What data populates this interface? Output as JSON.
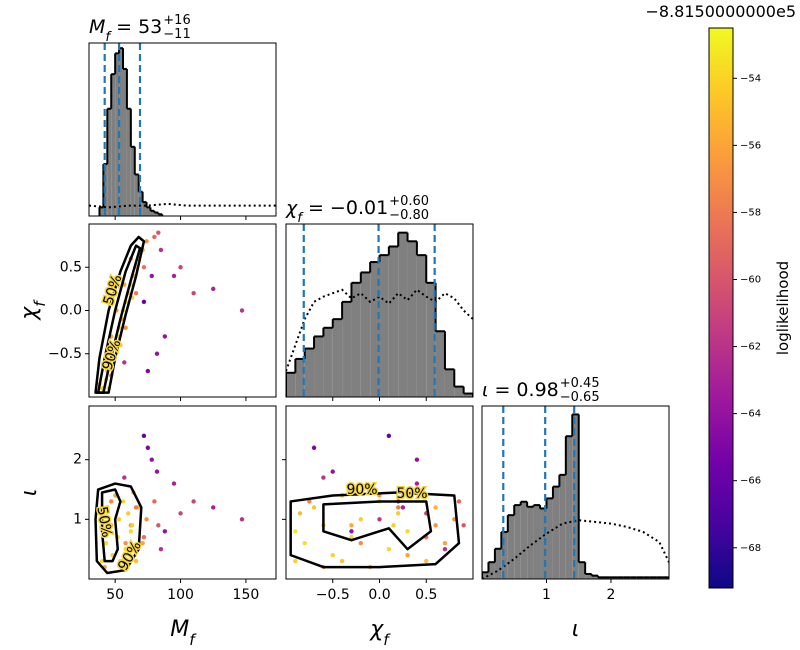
{
  "chart_data": {
    "type": "corner",
    "parameters": [
      {
        "label": {
          "main": "M",
          "sub": "f"
        },
        "title": {
          "main": "M",
          "sub": "f",
          "eq": " = 53",
          "upper": "+16",
          "lower": "−11"
        },
        "lim": [
          30,
          173
        ],
        "ticks": [
          50,
          100,
          150
        ],
        "quantiles": [
          42,
          53,
          69
        ],
        "hist": {
          "bins": [
            38,
            41,
            44,
            47,
            50,
            53,
            56,
            59,
            62,
            65,
            68,
            71,
            74,
            77,
            80,
            83,
            86
          ],
          "counts": [
            5,
            30,
            62,
            82,
            94,
            97,
            85,
            62,
            40,
            24,
            14,
            8,
            5,
            3,
            2,
            1
          ],
          "ylim": [
            0,
            100
          ]
        },
        "prior": {
          "x": [
            30,
            45,
            60,
            75,
            90,
            105,
            120,
            135,
            150,
            173
          ],
          "values": [
            6,
            5,
            6,
            6,
            7,
            6,
            6,
            6,
            6,
            6
          ]
        }
      },
      {
        "label": {
          "main": "χ",
          "sub": "f"
        },
        "title": {
          "main": "χ",
          "sub": "f",
          "eq": " = −0.01",
          "upper": "+0.60",
          "lower": "−0.80"
        },
        "lim": [
          -1.0,
          1.0
        ],
        "ticks": [
          {
            "value": -0.5,
            "label": "−0.5"
          },
          {
            "value": 0,
            "label": "0.0"
          },
          0.5
        ],
        "quantiles": [
          -0.81,
          -0.01,
          0.59
        ],
        "hist": {
          "bins": [
            -1.0,
            -0.9,
            -0.8,
            -0.7,
            -0.6,
            -0.5,
            -0.4,
            -0.3,
            -0.2,
            -0.1,
            0,
            0.1,
            0.2,
            0.3,
            0.4,
            0.5,
            0.6,
            0.7,
            0.8,
            0.9,
            1.0
          ],
          "counts": [
            14,
            22,
            28,
            35,
            40,
            45,
            55,
            66,
            72,
            78,
            82,
            87,
            95,
            90,
            82,
            66,
            38,
            16,
            6,
            2
          ],
          "ylim": [
            0,
            100
          ]
        },
        "prior": {
          "x": [
            -1.0,
            -0.9,
            -0.8,
            -0.7,
            -0.6,
            -0.5,
            -0.4,
            -0.3,
            -0.2,
            -0.1,
            0,
            0.1,
            0.2,
            0.3,
            0.4,
            0.5,
            0.6,
            0.7,
            0.8,
            0.9,
            1.0
          ],
          "values": [
            15,
            30,
            45,
            55,
            58,
            60,
            62,
            57,
            60,
            55,
            58,
            54,
            60,
            56,
            62,
            58,
            55,
            60,
            57,
            50,
            45
          ]
        }
      },
      {
        "label": {
          "main": "ι"
        },
        "title": {
          "main": "ι",
          "eq": " = 0.98",
          "upper": "+0.45",
          "lower": "−0.65"
        },
        "lim": [
          0,
          2.9
        ],
        "ticks": [
          1,
          2
        ],
        "quantiles": [
          0.33,
          0.98,
          1.43
        ],
        "hist": {
          "bins": [
            0,
            0.1,
            0.2,
            0.3,
            0.4,
            0.5,
            0.6,
            0.7,
            0.8,
            0.9,
            1.0,
            1.1,
            1.2,
            1.3,
            1.4,
            1.5,
            1.6,
            1.7,
            1.8,
            1.9,
            2.0,
            2.1,
            2.2,
            2.3,
            2.4,
            2.5,
            2.6,
            2.7,
            2.8,
            2.9
          ],
          "counts": [
            4,
            10,
            18,
            28,
            38,
            44,
            46,
            43,
            44,
            42,
            48,
            55,
            62,
            85,
            98,
            10,
            3,
            2,
            1,
            1,
            1,
            1,
            1,
            1,
            1,
            1,
            1,
            1,
            1
          ],
          "ylim": [
            0,
            103
          ]
        },
        "prior": {
          "x": [
            0,
            0.25,
            0.5,
            0.75,
            1,
            1.25,
            1.5,
            1.75,
            2,
            2.25,
            2.5,
            2.75,
            2.9
          ],
          "values": [
            0,
            5,
            12,
            20,
            27,
            33,
            35,
            34,
            33,
            31,
            28,
            22,
            10
          ]
        }
      }
    ],
    "samples": {
      "values": [
        [
          40,
          43,
          44,
          46,
          48,
          50,
          52,
          53,
          55,
          56,
          58,
          60,
          62,
          64,
          66,
          68,
          71,
          74,
          38,
          42,
          47,
          51,
          57,
          62,
          47,
          58,
          66,
          72,
          80,
          85,
          95,
          110,
          125,
          147,
          82,
          75,
          100,
          88,
          72,
          57,
          78,
          83,
          45,
          54,
          63
        ],
        [
          -0.9,
          -0.8,
          -0.7,
          -0.6,
          -0.5,
          -0.4,
          -0.3,
          -0.2,
          -0.1,
          0.0,
          0.1,
          0.2,
          0.3,
          0.4,
          0.5,
          0.6,
          0.7,
          0.8,
          -0.85,
          -0.6,
          -0.3,
          0.0,
          0.3,
          0.6,
          -0.75,
          -0.2,
          0.2,
          0.5,
          0.85,
          0.7,
          0.4,
          0.2,
          0.25,
          0.0,
          -0.5,
          -0.7,
          0.5,
          -0.3,
          0.1,
          -0.6,
          0.4,
          0.9,
          -0.9,
          -0.4,
          0.15
        ],
        [
          0.3,
          0.6,
          1.2,
          0.9,
          0.4,
          1.4,
          0.7,
          1.0,
          0.2,
          1.3,
          0.5,
          1.1,
          0.8,
          1.45,
          0.3,
          1.2,
          0.6,
          1.0,
          1.1,
          0.2,
          0.9,
          1.4,
          0.4,
          0.9,
          1.3,
          0.6,
          1.2,
          0.7,
          1.3,
          0.5,
          1.6,
          1.3,
          1.2,
          1.0,
          1.8,
          2.2,
          1.1,
          0.8,
          2.4,
          1.7,
          2.0,
          0.9,
          0.8,
          0.3,
          0.9
        ]
      ],
      "logl": [
        -54,
        -53.5,
        -54.5,
        -53.8,
        -54,
        -55,
        -53.6,
        -54.2,
        -55.5,
        -54,
        -53.9,
        -54.3,
        -53.7,
        -55,
        -54.8,
        -55.2,
        -56,
        -57,
        -55,
        -56,
        -55.8,
        -56.5,
        -56,
        -56.8,
        -57.5,
        -57,
        -58,
        -58.5,
        -59,
        -62,
        -63,
        -61,
        -63,
        -62,
        -64,
        -65,
        -61,
        -64,
        -66,
        -62,
        -64,
        -60,
        -53.2,
        -54.6,
        -54.1
      ]
    },
    "contours": [
      [
        [
          {
            "label": "50%",
            "x": [
              37,
              42,
              50,
              58,
              66,
              69,
              62,
              54,
              46,
              41
            ],
            "y": [
              -0.95,
              -0.55,
              0,
              0.45,
              0.75,
              0.72,
              0.35,
              -0.1,
              -0.6,
              -0.95
            ]
          },
          {
            "label": "90%",
            "x": [
              35,
              38,
              45,
              54,
              62,
              68,
              72,
              66,
              58,
              50,
              45
            ],
            "y": [
              -0.95,
              -0.55,
              0,
              0.45,
              0.75,
              0.85,
              0.8,
              0.4,
              -0.05,
              -0.55,
              -0.95
            ]
          }
        ]
      ],
      [
        [
          {
            "label": "50%",
            "x": [
              40,
              50,
              54,
              50,
              52,
              48,
              42,
              40
            ],
            "y": [
              1.45,
              1.5,
              1.3,
              1.0,
              0.5,
              0.3,
              0.3,
              0.8
            ]
          },
          {
            "label": "90%",
            "x": [
              37,
              50,
              62,
              70,
              68,
              58,
              44,
              36,
              35
            ],
            "y": [
              1.5,
              1.6,
              1.55,
              1.2,
              0.5,
              0.15,
              0.1,
              0.3,
              1.0
            ]
          }
        ],
        [
          {
            "label": "50%",
            "x": [
              -0.6,
              0,
              0.5,
              0.55,
              0.3,
              0.1,
              -0.3,
              -0.6
            ],
            "y": [
              1.25,
              1.3,
              1.3,
              0.8,
              0.5,
              0.85,
              0.65,
              0.8
            ]
          },
          {
            "label": "90%",
            "x": [
              -0.95,
              -0.5,
              0.2,
              0.8,
              0.85,
              0.6,
              0,
              -0.6,
              -0.95
            ],
            "y": [
              1.3,
              1.4,
              1.45,
              1.4,
              0.6,
              0.25,
              0.2,
              0.2,
              0.4
            ]
          }
        ]
      ]
    ],
    "colorbar": {
      "label": "loglikelihood",
      "offset": "−8.8150000000e5",
      "lim": [
        -69.2,
        -52.5
      ],
      "ticks": [
        {
          "value": -54,
          "label": "−54"
        },
        {
          "value": -56,
          "label": "−56"
        },
        {
          "value": -58,
          "label": "−58"
        },
        {
          "value": -60,
          "label": "−60"
        },
        {
          "value": -62,
          "label": "−62"
        },
        {
          "value": -64,
          "label": "−64"
        },
        {
          "value": -66,
          "label": "−66"
        },
        {
          "value": -68,
          "label": "−68"
        }
      ],
      "colormap": [
        "#0d0887",
        "#46039f",
        "#7201a8",
        "#9c179e",
        "#bd3786",
        "#d8576b",
        "#ed7953",
        "#fb9f3a",
        "#fdca26",
        "#f0f921"
      ]
    },
    "hist_color": "#808080",
    "quantile_color": "#1f77b4"
  }
}
